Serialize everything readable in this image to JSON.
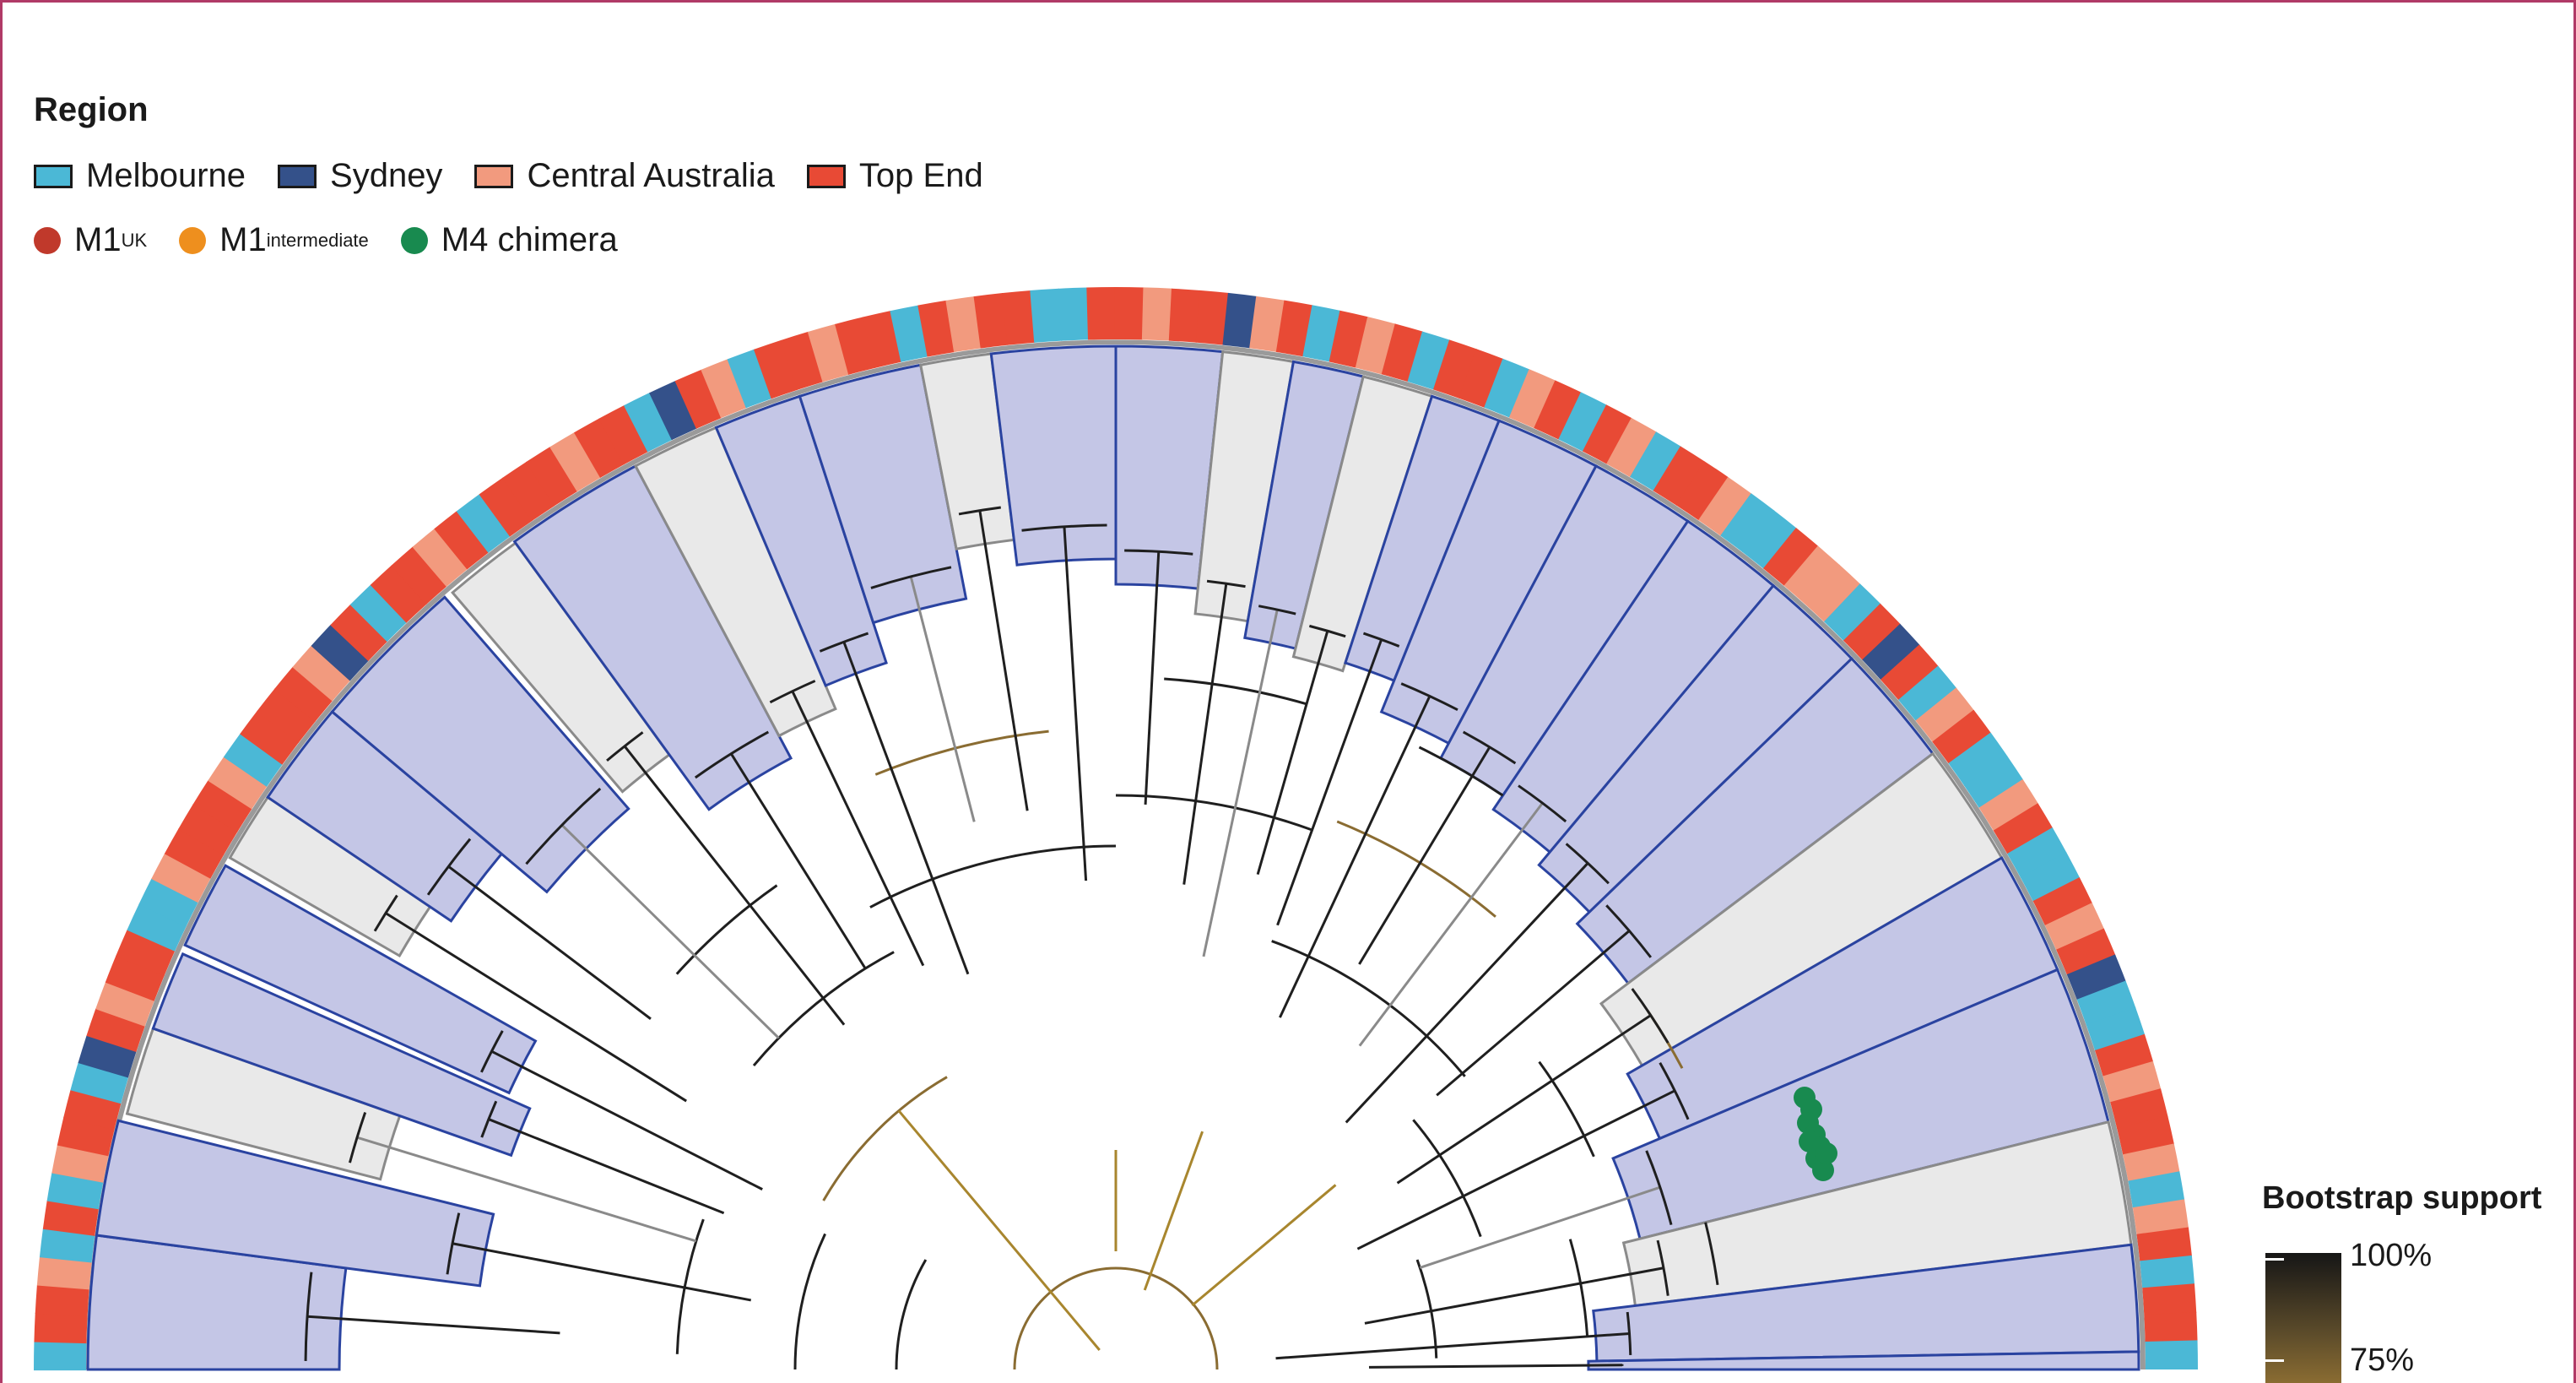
{
  "legend": {
    "title": "Region",
    "regions": [
      {
        "label": "Melbourne",
        "color": "#4bb8d6"
      },
      {
        "label": "Sydney",
        "color": "#34518a"
      },
      {
        "label": "Central Australia",
        "color": "#f29a7e"
      },
      {
        "label": "Top End",
        "color": "#e84a35"
      }
    ],
    "lineages": [
      {
        "base": "M1",
        "sub": "UK",
        "color": "#c0392b"
      },
      {
        "base": "M1",
        "sub": "intermediate",
        "color": "#ee8f1e"
      },
      {
        "base": "M4 chimera",
        "sub": "",
        "color": "#188a4f"
      }
    ]
  },
  "bootstrap": {
    "title": "Bootstrap support",
    "ticks": [
      "100%",
      "75%"
    ],
    "gradient": [
      "#161616",
      "#8a6c32"
    ]
  },
  "tree": {
    "clade_fill": "#c4c6e6",
    "clade_outline": "#2a43a0",
    "gray_fill": "#e9e9e9",
    "gray_outline": "#8a8a8a",
    "ring_sequence": [
      "melb",
      "topend",
      "topend",
      "central",
      "melb",
      "topend",
      "melb",
      "central",
      "topend",
      "topend",
      "melb",
      "sydney",
      "topend",
      "central",
      "topend",
      "topend",
      "melb",
      "melb",
      "central",
      "topend",
      "topend",
      "topend",
      "central",
      "melb",
      "topend",
      "topend",
      "topend",
      "central",
      "sydney",
      "topend",
      "melb",
      "topend",
      "topend",
      "central",
      "topend",
      "melb",
      "topend",
      "topend",
      "topend",
      "central",
      "topend",
      "topend",
      "melb",
      "sydney",
      "topend",
      "central",
      "melb",
      "topend",
      "topend",
      "central",
      "topend",
      "topend",
      "melb",
      "topend",
      "central",
      "topend",
      "topend",
      "melb",
      "melb",
      "topend",
      "topend",
      "central",
      "topend",
      "topend",
      "sydney",
      "central",
      "topend",
      "melb",
      "topend",
      "central",
      "topend",
      "melb",
      "topend",
      "topend",
      "melb",
      "central",
      "topend",
      "melb",
      "topend",
      "central",
      "melb",
      "topend",
      "topend",
      "central",
      "melb",
      "melb",
      "topend",
      "central",
      "central",
      "melb",
      "topend",
      "sydney",
      "topend",
      "melb",
      "central",
      "topend",
      "melb",
      "melb",
      "central",
      "topend",
      "melb",
      "melb",
      "topend",
      "central",
      "topend",
      "sydney",
      "melb",
      "melb",
      "topend",
      "central",
      "topend",
      "topend",
      "central",
      "melb",
      "central",
      "topend",
      "melb",
      "topend",
      "topend",
      "melb"
    ]
  }
}
